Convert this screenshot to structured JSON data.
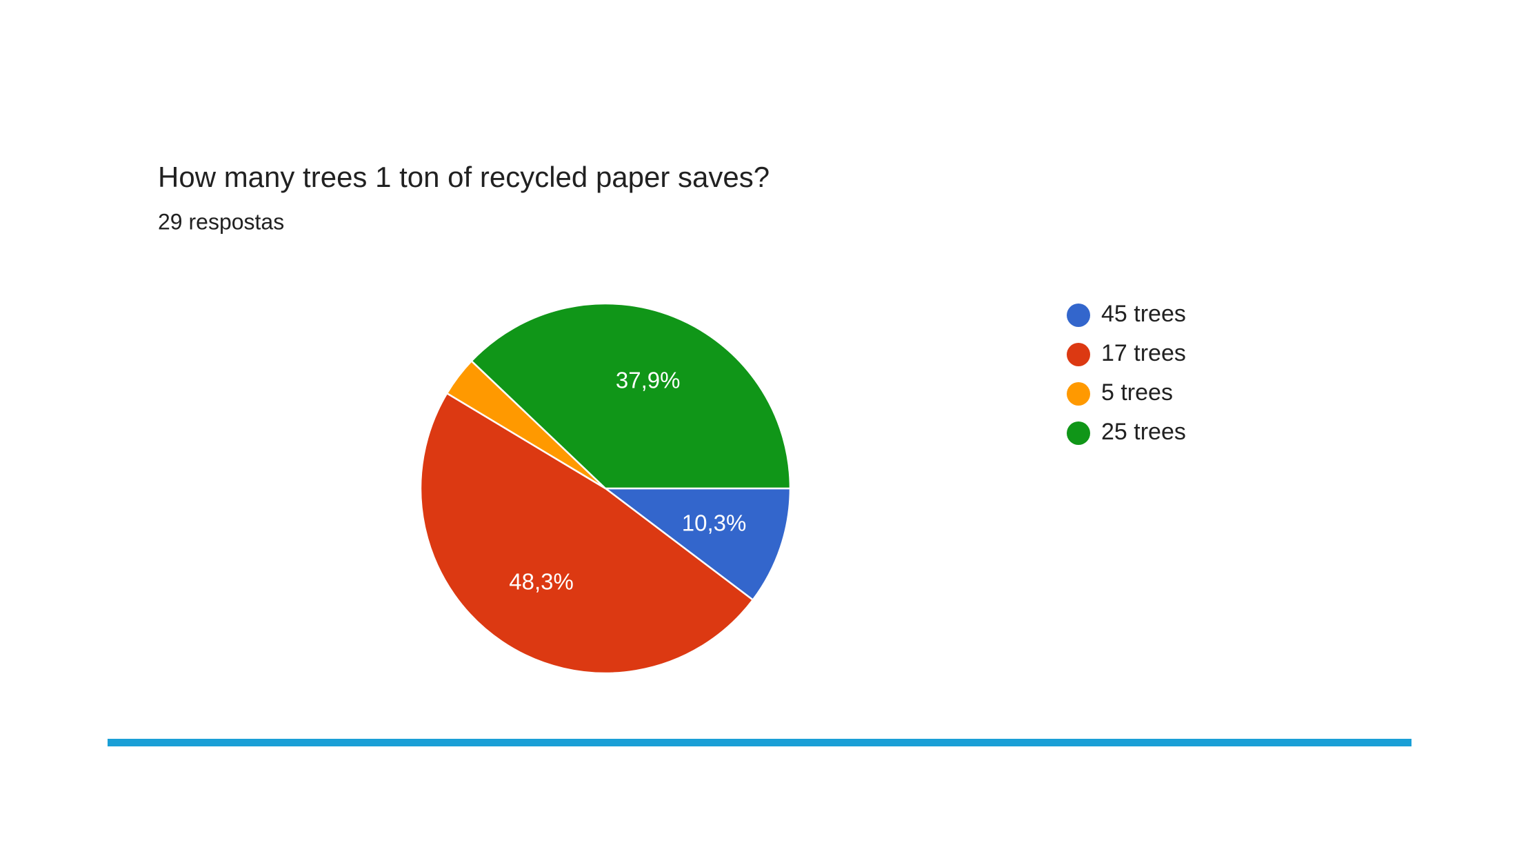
{
  "chart_data": {
    "type": "pie",
    "title": "How many trees 1 ton of recycled paper saves?",
    "subtitle": "29 respostas",
    "categories": [
      "45 trees",
      "17 trees",
      "5 trees",
      "25 trees"
    ],
    "values": [
      10.3,
      48.3,
      3.5,
      37.9
    ],
    "value_labels": [
      "10,3%",
      "48,3%",
      null,
      "37,9%"
    ],
    "colors": [
      "#3366cc",
      "#dc3912",
      "#ff9900",
      "#109618"
    ],
    "legend": "right"
  }
}
